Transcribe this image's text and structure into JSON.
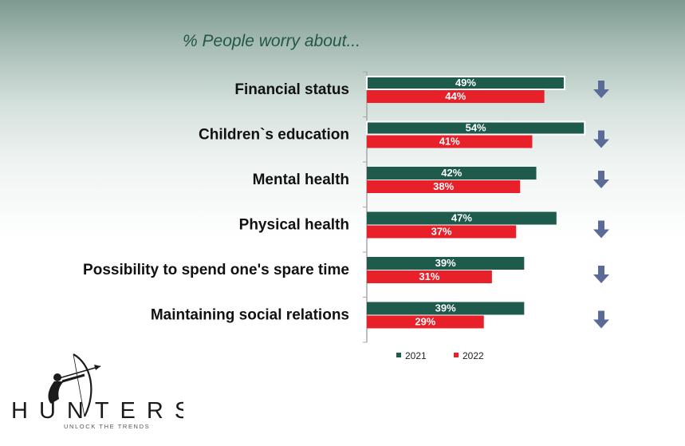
{
  "title": "% People worry about...",
  "chart_data": {
    "type": "bar",
    "orientation": "horizontal",
    "categories": [
      "Financial status",
      "Children`s education",
      "Mental health",
      "Physical health",
      "Possibility to spend one's spare time",
      "Maintaining social relations"
    ],
    "series": [
      {
        "name": "2021",
        "color": "#1e5b4d",
        "values": [
          49,
          54,
          42,
          47,
          39,
          39
        ],
        "labels": [
          "49%",
          "54%",
          "42%",
          "47%",
          "39%",
          "39%"
        ]
      },
      {
        "name": "2022",
        "color": "#e8202a",
        "values": [
          44,
          41,
          38,
          37,
          31,
          29
        ],
        "labels": [
          "44%",
          "41%",
          "38%",
          "37%",
          "31%",
          "29%"
        ]
      }
    ],
    "trend": [
      "down",
      "down",
      "down",
      "down",
      "down",
      "down"
    ],
    "trend_icon": "down-arrow-icon",
    "trend_color": "#5b6b98",
    "legend_position": "bottom",
    "xlim": [
      0,
      56
    ],
    "grid": false
  },
  "logo": {
    "wordmark": "HUNTERS",
    "tagline": "UNLOCK THE TRENDS",
    "icon": "archer-icon"
  }
}
